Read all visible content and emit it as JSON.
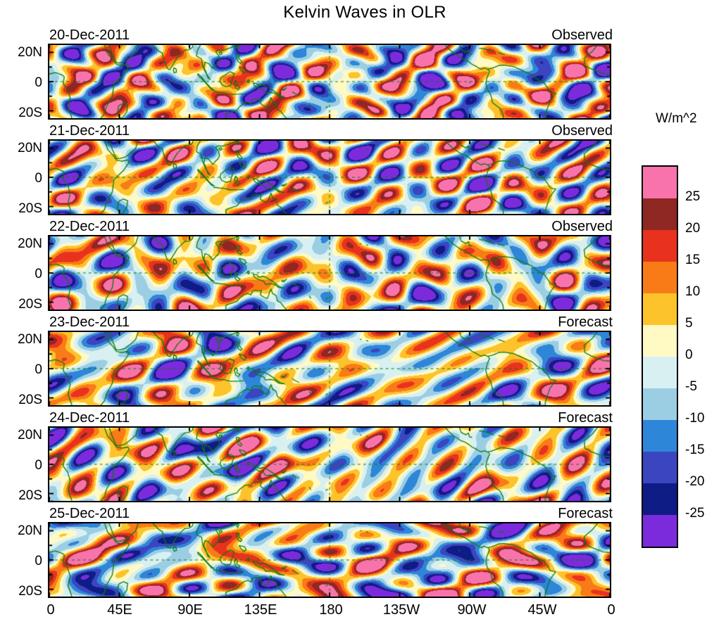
{
  "chart_data": {
    "type": "heatmap",
    "title": "Kelvin Waves in OLR",
    "units_label": "W/m^2",
    "panels": [
      {
        "date": "20-Dec-2011",
        "label": "Observed"
      },
      {
        "date": "21-Dec-2011",
        "label": "Observed"
      },
      {
        "date": "22-Dec-2011",
        "label": "Observed"
      },
      {
        "date": "23-Dec-2011",
        "label": "Forecast"
      },
      {
        "date": "24-Dec-2011",
        "label": "Forecast"
      },
      {
        "date": "25-Dec-2011",
        "label": "Forecast"
      }
    ],
    "lat_tick_labels": [
      "20N",
      "0",
      "20S"
    ],
    "lon_tick_labels": [
      "0",
      "45E",
      "90E",
      "135E",
      "180",
      "135W",
      "90W",
      "45W",
      "0"
    ],
    "lat_range_deg": [
      -25,
      25
    ],
    "lon_range_deg": [
      0,
      360
    ],
    "contour_levels": [
      -25,
      -20,
      -15,
      -10,
      -5,
      0,
      5,
      10,
      15,
      20,
      25
    ],
    "colorbar_tick_labels": [
      "25",
      "20",
      "15",
      "10",
      "5",
      "0",
      "-5",
      "-10",
      "-15",
      "-20",
      "-25"
    ],
    "palette_top_to_bottom": [
      "#F873AC",
      "#8F2723",
      "#E8321E",
      "#F97B17",
      "#FCC32B",
      "#FFF9C4",
      "#D8F0F2",
      "#9CCEE3",
      "#2E86D9",
      "#3C45C0",
      "#0E1C86",
      "#7B2BDB"
    ],
    "coastline_color": "#0A7A0A",
    "grid": "dashed equator line and dashed 180 meridian",
    "legend_position": "right"
  }
}
